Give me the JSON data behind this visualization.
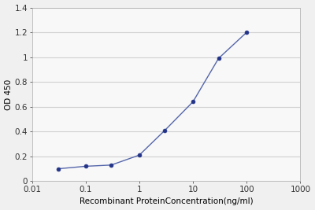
{
  "x": [
    0.031,
    0.1,
    0.3,
    1.0,
    3.0,
    10.0,
    30.0,
    100.0
  ],
  "y": [
    0.1,
    0.12,
    0.13,
    0.21,
    0.41,
    0.64,
    0.99,
    1.2
  ],
  "xmin": 0.01,
  "xmax": 1000,
  "ymin": 0,
  "ymax": 1.4,
  "yticks": [
    0,
    0.2,
    0.4,
    0.6,
    0.8,
    1.0,
    1.2,
    1.4
  ],
  "ytick_labels": [
    "0",
    "0.2",
    "0.4",
    "0.6",
    "0.8",
    "1",
    "1.2",
    "1.4"
  ],
  "xtick_labels": [
    "0.01",
    "0.1",
    "1",
    "10",
    "100",
    "1000"
  ],
  "xtick_values": [
    0.01,
    0.1,
    1,
    10,
    100,
    1000
  ],
  "xlabel": "Recombinant ProteinConcentration(ng/ml)",
  "ylabel": "OD 450",
  "line_color": "#5566aa",
  "marker_color": "#223388",
  "background_color": "#f0f0f0",
  "plot_bg_color": "#f8f8f8",
  "grid_color": "#d0d0d0"
}
